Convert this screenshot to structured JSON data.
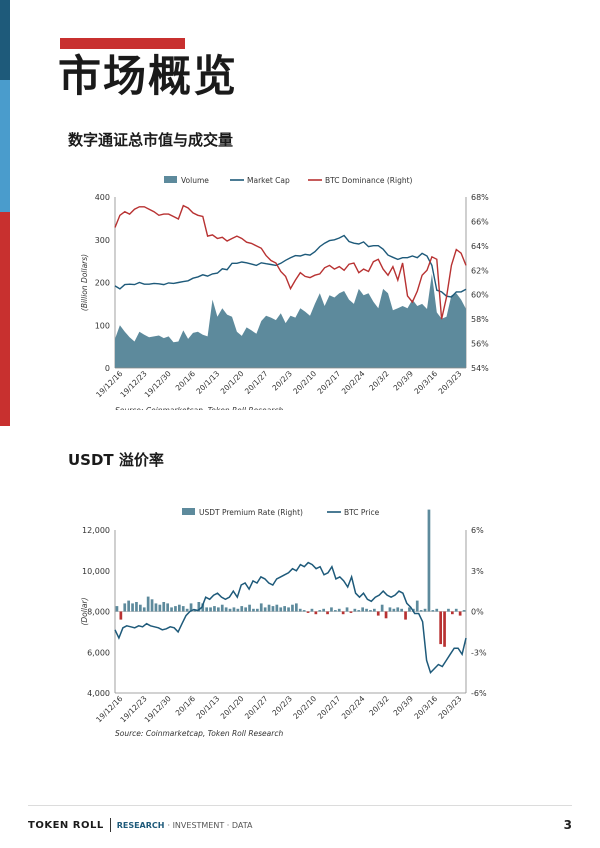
{
  "page": {
    "title": "市场概览",
    "number": "3"
  },
  "footer": {
    "brand": "TOKEN ROLL",
    "tagline_research": "RESEARCH",
    "tagline_rest": "· INVESTMENT · DATA"
  },
  "section1": {
    "title": "数字通证总市值与成交量"
  },
  "section2": {
    "title": "USDT 溢价率"
  },
  "chart_data": [
    {
      "type": "area",
      "legend": [
        "Volume",
        "Market Cap",
        "BTC Dominance (Right)"
      ],
      "legend_position": "top",
      "ylabel": "(Billion Dollars)",
      "ylim": [
        0,
        400
      ],
      "y_ticks": [
        "0",
        "100",
        "200",
        "300",
        "400"
      ],
      "y2lim": [
        54,
        68
      ],
      "y2_ticks": [
        "54%",
        "56%",
        "58%",
        "60%",
        "62%",
        "64%",
        "66%",
        "68%"
      ],
      "x_ticks": [
        "19/12/16",
        "19/12/23",
        "19/12/30",
        "20/1/6",
        "20/1/13",
        "20/1/20",
        "20/1/27",
        "20/2/3",
        "20/2/10",
        "20/2/17",
        "20/2/24",
        "20/3/2",
        "20/3/9",
        "20/3/16",
        "20/3/23"
      ],
      "source": "Source: Coinmarketcap, Token Roll Research",
      "colors": {
        "volume": "#5d8a9c",
        "market_cap": "#1e5a7a",
        "btc_dominance": "#b83232"
      },
      "series": [
        {
          "name": "Volume",
          "axis": "left",
          "values": [
            68,
            100,
            85,
            72,
            62,
            85,
            78,
            72,
            74,
            76,
            70,
            74,
            60,
            62,
            88,
            68,
            82,
            85,
            78,
            74,
            160,
            120,
            140,
            125,
            120,
            85,
            75,
            95,
            88,
            80,
            110,
            122,
            118,
            112,
            128,
            105,
            122,
            118,
            140,
            132,
            122,
            150,
            175,
            145,
            170,
            165,
            175,
            180,
            160,
            150,
            185,
            170,
            175,
            155,
            140,
            185,
            175,
            135,
            140,
            145,
            140,
            160,
            145,
            150,
            138,
            220,
            130,
            115,
            120,
            170,
            175,
            160,
            138
          ]
        },
        {
          "name": "Market Cap",
          "axis": "left",
          "values": [
            192,
            185,
            195,
            196,
            195,
            200,
            196,
            196,
            198,
            197,
            195,
            199,
            198,
            200,
            202,
            204,
            210,
            213,
            218,
            215,
            220,
            222,
            232,
            230,
            245,
            245,
            248,
            246,
            243,
            240,
            246,
            244,
            242,
            240,
            245,
            252,
            258,
            263,
            262,
            266,
            264,
            272,
            284,
            292,
            298,
            300,
            304,
            310,
            296,
            292,
            290,
            295,
            284,
            286,
            286,
            278,
            264,
            259,
            254,
            258,
            258,
            262,
            258,
            268,
            262,
            240,
            182,
            178,
            168,
            166,
            178,
            178,
            184
          ]
        },
        {
          "name": "BTC Dominance (Right)",
          "axis": "right",
          "values": [
            65.5,
            66.5,
            66.8,
            66.6,
            67.0,
            67.2,
            67.2,
            67.0,
            66.8,
            66.5,
            66.6,
            66.6,
            66.4,
            66.2,
            67.3,
            67.1,
            66.7,
            66.5,
            66.4,
            64.8,
            64.9,
            64.6,
            64.7,
            64.4,
            64.6,
            64.8,
            64.6,
            64.3,
            64.2,
            64.0,
            63.8,
            63.2,
            62.8,
            62.6,
            61.9,
            61.5,
            60.5,
            61.2,
            61.8,
            61.5,
            61.4,
            61.6,
            61.7,
            62.2,
            62.4,
            62.1,
            62.3,
            62.0,
            62.5,
            62.6,
            61.8,
            62.1,
            61.9,
            62.7,
            62.9,
            62.1,
            61.6,
            62.3,
            61.2,
            62.6,
            59.9,
            59.4,
            60.3,
            61.6,
            62.0,
            63.1,
            62.9,
            58.0,
            59.8,
            62.4,
            63.7,
            63.4,
            62.4
          ]
        }
      ]
    },
    {
      "type": "bar",
      "legend": [
        "USDT Premium Rate (Right)",
        "BTC Price"
      ],
      "legend_position": "top",
      "ylabel": "(Dollar)",
      "ylim": [
        4000,
        12000
      ],
      "y_ticks": [
        "4,000",
        "6,000",
        "8,000",
        "10,000",
        "12,000"
      ],
      "y2lim": [
        -6,
        6
      ],
      "y2_ticks": [
        "-6%",
        "-3%",
        "0%",
        "3%",
        "6%"
      ],
      "x_ticks": [
        "19/12/16",
        "19/12/23",
        "19/12/30",
        "20/1/6",
        "20/1/13",
        "20/1/20",
        "20/1/27",
        "20/2/3",
        "20/2/10",
        "20/2/17",
        "20/2/24",
        "20/3/2",
        "20/3/9",
        "20/3/16",
        "20/3/23"
      ],
      "source": "Source: Coinmarketcap, Token Roll Research",
      "colors": {
        "positive": "#5d8a9c",
        "negative": "#b83232",
        "price": "#1e5a7a"
      },
      "series": [
        {
          "name": "USDT Premium Rate (Right)",
          "axis": "right",
          "values": [
            0.4,
            -0.6,
            0.6,
            0.8,
            0.6,
            0.7,
            0.5,
            0.3,
            1.1,
            0.9,
            0.6,
            0.5,
            0.7,
            0.6,
            0.3,
            0.4,
            0.5,
            0.4,
            0.2,
            0.6,
            0.1,
            0.7,
            0.6,
            0.3,
            0.3,
            0.4,
            0.3,
            0.5,
            0.3,
            0.2,
            0.3,
            0.2,
            0.4,
            0.3,
            0.5,
            0.2,
            0.2,
            0.6,
            0.3,
            0.5,
            0.4,
            0.5,
            0.3,
            0.4,
            0.3,
            0.5,
            0.6,
            0.2,
            0.1,
            -0.1,
            0.2,
            -0.2,
            0.1,
            0.2,
            -0.2,
            0.3,
            0.1,
            0.2,
            -0.2,
            0.3,
            -0.1,
            0.2,
            0.1,
            0.3,
            0.2,
            0.1,
            0.2,
            -0.3,
            0.5,
            -0.5,
            0.3,
            0.2,
            0.3,
            0.2,
            -0.6,
            0.3,
            0.2,
            0.8,
            0.1,
            0.2,
            7.5,
            0.1,
            0.2,
            -2.4,
            -2.6,
            0.2,
            -0.2,
            0.2,
            -0.3,
            0.1
          ]
        },
        {
          "name": "BTC Price",
          "axis": "left",
          "values": [
            7100,
            6700,
            7200,
            7300,
            7250,
            7200,
            7300,
            7250,
            7400,
            7300,
            7250,
            7200,
            7100,
            7150,
            7250,
            7200,
            7000,
            7400,
            7800,
            8000,
            8100,
            8050,
            8200,
            8700,
            8600,
            8800,
            8900,
            8700,
            8600,
            8700,
            9000,
            8700,
            9300,
            9400,
            9100,
            9500,
            9400,
            9700,
            9600,
            9400,
            9300,
            9600,
            9700,
            9800,
            9900,
            10100,
            10000,
            10300,
            10200,
            10400,
            10300,
            10100,
            10200,
            9800,
            9900,
            10200,
            9600,
            9700,
            9500,
            9200,
            9700,
            8900,
            8700,
            8900,
            8600,
            8500,
            8700,
            8800,
            9000,
            8800,
            8700,
            8800,
            9000,
            8900,
            8400,
            8200,
            7900,
            7900,
            7500,
            5600,
            5000,
            5200,
            5400,
            5300,
            5600,
            5900,
            6200,
            6200,
            5900,
            6700
          ]
        }
      ]
    }
  ]
}
